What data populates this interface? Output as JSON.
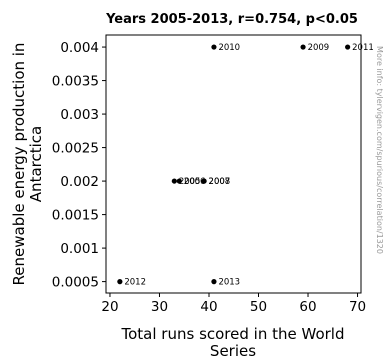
{
  "chart_data": {
    "type": "scatter",
    "title": "Years 2005-2013, r=0.754, p<0.05",
    "xlabel_lines": [
      "Total runs scored in the World",
      "Series"
    ],
    "ylabel_lines": [
      "Renewable energy production in",
      "Antarctica"
    ],
    "side_note": "More info: tylervigen.com/spurious/correlation/1320",
    "xlim": [
      19.2,
      70.7
    ],
    "ylim": [
      0.00033,
      0.00418
    ],
    "xticks": [
      20,
      30,
      40,
      50,
      60,
      70
    ],
    "yticks": [
      0.0005,
      0.001,
      0.0015,
      0.002,
      0.0025,
      0.003,
      0.0035,
      0.004
    ],
    "ytick_labels": [
      "0.0005",
      "0.001",
      "0.0015",
      "0.002",
      "0.0025",
      "0.003",
      "0.0035",
      "0.004"
    ],
    "grid": false,
    "points": [
      {
        "label": "2005",
        "x": 33,
        "y": 0.002
      },
      {
        "label": "2006",
        "x": 34,
        "y": 0.002
      },
      {
        "label": "2007",
        "x": 39,
        "y": 0.002
      },
      {
        "label": "2008",
        "x": 39,
        "y": 0.002
      },
      {
        "label": "2009",
        "x": 59,
        "y": 0.004
      },
      {
        "label": "2010",
        "x": 41,
        "y": 0.004
      },
      {
        "label": "2011",
        "x": 68,
        "y": 0.004
      },
      {
        "label": "2012",
        "x": 22,
        "y": 0.0005
      },
      {
        "label": "2013",
        "x": 41,
        "y": 0.0005
      }
    ]
  }
}
